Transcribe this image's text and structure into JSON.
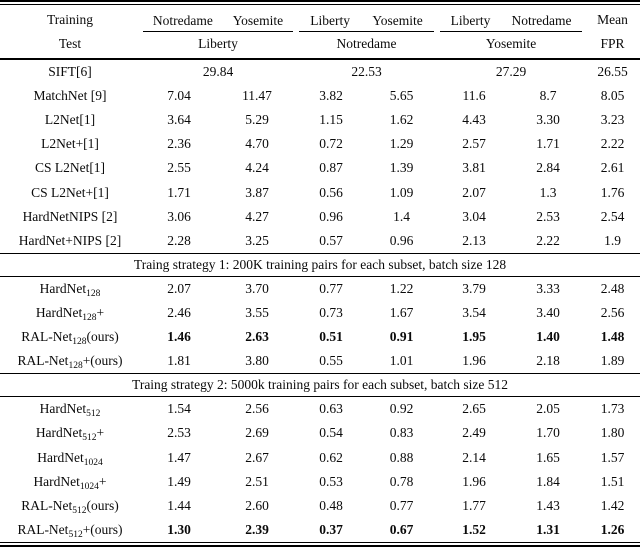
{
  "table": {
    "header": {
      "row1_label": "Training",
      "row2_label": "Test",
      "train_pairs": [
        [
          "Notredame",
          "Yosemite"
        ],
        [
          "Liberty",
          "Yosemite"
        ],
        [
          "Liberty",
          "Notredame"
        ]
      ],
      "test_sets": [
        "Liberty",
        "Notredame",
        "Yosemite"
      ],
      "mean_label": "Mean",
      "fpr_label": "FPR"
    },
    "sections": [
      {
        "header": null,
        "rows": [
          {
            "label": {
              "pre": "SIFT[6]",
              "sub": "",
              "post": ""
            },
            "span": [
              "29.84",
              "22.53",
              "27.29"
            ],
            "mean": "26.55",
            "bold": false
          },
          {
            "label": {
              "pre": "MatchNet [9]",
              "sub": "",
              "post": ""
            },
            "values": [
              "7.04",
              "11.47",
              "3.82",
              "5.65",
              "11.6",
              "8.7"
            ],
            "mean": "8.05",
            "bold": false
          },
          {
            "label": {
              "pre": "L2Net[1]",
              "sub": "",
              "post": ""
            },
            "values": [
              "3.64",
              "5.29",
              "1.15",
              "1.62",
              "4.43",
              "3.30"
            ],
            "mean": "3.23",
            "bold": false
          },
          {
            "label": {
              "pre": "L2Net+[1]",
              "sub": "",
              "post": ""
            },
            "values": [
              "2.36",
              "4.70",
              "0.72",
              "1.29",
              "2.57",
              "1.71"
            ],
            "mean": "2.22",
            "bold": false
          },
          {
            "label": {
              "pre": "CS L2Net[1]",
              "sub": "",
              "post": ""
            },
            "values": [
              "2.55",
              "4.24",
              "0.87",
              "1.39",
              "3.81",
              "2.84"
            ],
            "mean": "2.61",
            "bold": false
          },
          {
            "label": {
              "pre": "CS L2Net+[1]",
              "sub": "",
              "post": ""
            },
            "values": [
              "1.71",
              "3.87",
              "0.56",
              "1.09",
              "2.07",
              "1.3"
            ],
            "mean": "1.76",
            "bold": false
          },
          {
            "label": {
              "pre": "HardNetNIPS [2]",
              "sub": "",
              "post": ""
            },
            "values": [
              "3.06",
              "4.27",
              "0.96",
              "1.4",
              "3.04",
              "2.53"
            ],
            "mean": "2.54",
            "bold": false
          },
          {
            "label": {
              "pre": "HardNet+NIPS [2]",
              "sub": "",
              "post": ""
            },
            "values": [
              "2.28",
              "3.25",
              "0.57",
              "0.96",
              "2.13",
              "2.22"
            ],
            "mean": "1.9",
            "bold": false
          }
        ]
      },
      {
        "header": "Traing strategy 1: 200K training pairs for each subset, batch size 128",
        "rows": [
          {
            "label": {
              "pre": "HardNet",
              "sub": "128",
              "post": ""
            },
            "values": [
              "2.07",
              "3.70",
              "0.77",
              "1.22",
              "3.79",
              "3.33"
            ],
            "mean": "2.48",
            "bold": false
          },
          {
            "label": {
              "pre": "HardNet",
              "sub": "128",
              "post": "+"
            },
            "values": [
              "2.46",
              "3.55",
              "0.73",
              "1.67",
              "3.54",
              "3.40"
            ],
            "mean": "2.56",
            "bold": false
          },
          {
            "label": {
              "pre": "RAL-Net",
              "sub": "128",
              "post": "(ours)"
            },
            "values": [
              "1.46",
              "2.63",
              "0.51",
              "0.91",
              "1.95",
              "1.40"
            ],
            "mean": "1.48",
            "bold": true
          },
          {
            "label": {
              "pre": "RAL-Net",
              "sub": "128",
              "post": "+(ours)"
            },
            "values": [
              "1.81",
              "3.80",
              "0.55",
              "1.01",
              "1.96",
              "2.18"
            ],
            "mean": "1.89",
            "bold": false
          }
        ]
      },
      {
        "header": "Traing strategy 2: 5000k training pairs for each subset, batch size 512",
        "rows": [
          {
            "label": {
              "pre": "HardNet",
              "sub": "512",
              "post": ""
            },
            "values": [
              "1.54",
              "2.56",
              "0.63",
              "0.92",
              "2.65",
              "2.05"
            ],
            "mean": "1.73",
            "bold": false
          },
          {
            "label": {
              "pre": "HardNet",
              "sub": "512",
              "post": "+"
            },
            "values": [
              "2.53",
              "2.69",
              "0.54",
              "0.83",
              "2.49",
              "1.70"
            ],
            "mean": "1.80",
            "bold": false
          },
          {
            "label": {
              "pre": "HardNet",
              "sub": "1024",
              "post": ""
            },
            "values": [
              "1.47",
              "2.67",
              "0.62",
              "0.88",
              "2.14",
              "1.65"
            ],
            "mean": "1.57",
            "bold": false
          },
          {
            "label": {
              "pre": "HardNet",
              "sub": "1024",
              "post": "+"
            },
            "values": [
              "1.49",
              "2.51",
              "0.53",
              "0.78",
              "1.96",
              "1.84"
            ],
            "mean": "1.51",
            "bold": false
          },
          {
            "label": {
              "pre": "RAL-Net",
              "sub": "512",
              "post": "(ours)"
            },
            "values": [
              "1.44",
              "2.60",
              "0.48",
              "0.77",
              "1.77",
              "1.43"
            ],
            "mean": "1.42",
            "bold": false
          },
          {
            "label": {
              "pre": "RAL-Net",
              "sub": "512",
              "post": "+(ours)"
            },
            "values": [
              "1.30",
              "2.39",
              "0.37",
              "0.67",
              "1.52",
              "1.31"
            ],
            "mean": "1.26",
            "bold": true
          }
        ]
      }
    ]
  }
}
